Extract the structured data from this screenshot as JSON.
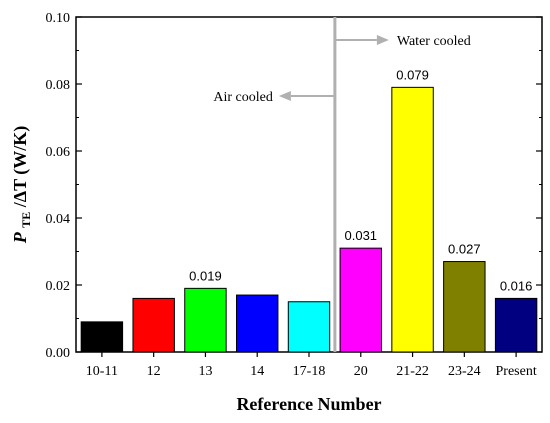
{
  "chart_data": {
    "type": "bar",
    "categories": [
      "10-11",
      "12",
      "13",
      "14",
      "17-18",
      "20",
      "21-22",
      "23-24",
      "Present"
    ],
    "values": [
      0.009,
      0.016,
      0.019,
      0.017,
      0.015,
      0.031,
      0.079,
      0.027,
      0.016
    ],
    "value_labels": [
      "",
      "",
      "0.019",
      "",
      "",
      "0.031",
      "0.079",
      "0.027",
      "0.016"
    ],
    "bar_colors": [
      "#000000",
      "#ff0000",
      "#00ff00",
      "#0000ff",
      "#00ffff",
      "#ff00ff",
      "#ffff00",
      "#808000",
      "#000080"
    ],
    "ylim": [
      0,
      0.1
    ],
    "yticks": [
      "0.00",
      "0.02",
      "0.04",
      "0.06",
      "0.08",
      "0.10"
    ],
    "xlabel": "Reference Number",
    "ylabel": {
      "p": "P",
      "sub": "TE",
      "rest": "/ΔT  (W/K)"
    },
    "annotations": {
      "divider_between": [
        "17-18",
        "20"
      ],
      "left": "Air cooled",
      "right": "Water cooled"
    }
  }
}
